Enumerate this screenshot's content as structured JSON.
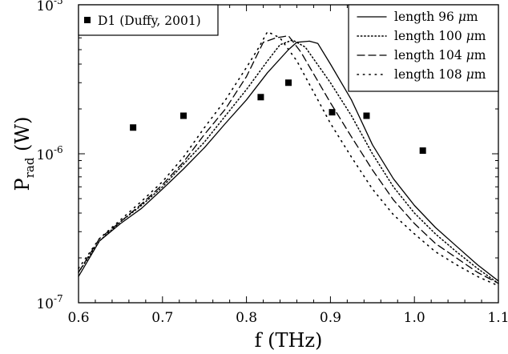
{
  "chart_data": {
    "type": "line",
    "title": "",
    "xlabel": "f (THz)",
    "ylabel": {
      "main": "P",
      "subscript": "rad",
      "unit": " (W)"
    },
    "xscale": "linear",
    "yscale": "log",
    "xlim": [
      0.6,
      1.1
    ],
    "ylim": [
      1e-07,
      1e-05
    ],
    "x_ticks": [
      {
        "value": 0.6,
        "label": "0.6"
      },
      {
        "value": 0.7,
        "label": "0.7"
      },
      {
        "value": 0.8,
        "label": "0.8"
      },
      {
        "value": 0.9,
        "label": "0.9"
      },
      {
        "value": 1.0,
        "label": "1.0"
      },
      {
        "value": 1.1,
        "label": "1.1"
      }
    ],
    "y_ticks": [
      {
        "value": 1e-07,
        "base": "10",
        "exp": "-7"
      },
      {
        "value": 1e-06,
        "base": "10",
        "exp": "-6"
      },
      {
        "value": 1e-05,
        "base": "10",
        "exp": "-5"
      }
    ],
    "grid": false,
    "legend_position": "top-right",
    "scatter_legend_position": "top-left",
    "series": [
      {
        "name": "length 96 μm",
        "legend_parts": [
          "length 96 ",
          "μ",
          "m"
        ],
        "style": "solid",
        "x": [
          0.6,
          0.625,
          0.65,
          0.675,
          0.7,
          0.725,
          0.75,
          0.775,
          0.8,
          0.825,
          0.85,
          0.86,
          0.875,
          0.885,
          0.9,
          0.925,
          0.95,
          0.975,
          1.0,
          1.025,
          1.05,
          1.075,
          1.1
        ],
        "y": [
          1.5e-07,
          2.6e-07,
          3.4e-07,
          4.3e-07,
          5.8e-07,
          7.9e-07,
          1.1e-06,
          1.6e-06,
          2.3e-06,
          3.5e-06,
          5e-06,
          5.6e-06,
          5.7e-06,
          5.5e-06,
          4e-06,
          2.3e-06,
          1.15e-06,
          6.8e-07,
          4.5e-07,
          3.2e-07,
          2.4e-07,
          1.8e-07,
          1.4e-07
        ]
      },
      {
        "name": "length 100 μm",
        "legend_parts": [
          "length 100 ",
          "μ",
          "m"
        ],
        "style": "dotted",
        "x": [
          0.6,
          0.625,
          0.65,
          0.675,
          0.7,
          0.725,
          0.75,
          0.775,
          0.8,
          0.825,
          0.84,
          0.855,
          0.87,
          0.9,
          0.925,
          0.95,
          0.975,
          1.0,
          1.025,
          1.05,
          1.075,
          1.1
        ],
        "y": [
          1.6e-07,
          2.6e-07,
          3.5e-07,
          4.5e-07,
          6e-07,
          8.5e-07,
          1.2e-06,
          1.8e-06,
          2.7e-06,
          4.2e-06,
          5.4e-06,
          5.8e-06,
          5.2e-06,
          3e-06,
          1.8e-06,
          1e-06,
          6e-07,
          4e-07,
          2.9e-07,
          2.2e-07,
          1.7e-07,
          1.35e-07
        ]
      },
      {
        "name": "length 104 μm",
        "legend_parts": [
          "length 104 ",
          "μ",
          "m"
        ],
        "style": "dashed",
        "x": [
          0.6,
          0.625,
          0.65,
          0.675,
          0.7,
          0.725,
          0.75,
          0.775,
          0.8,
          0.82,
          0.835,
          0.85,
          0.865,
          0.9,
          0.925,
          0.95,
          0.975,
          1.0,
          1.025,
          1.05,
          1.075,
          1.1
        ],
        "y": [
          1.6e-07,
          2.7e-07,
          3.5e-07,
          4.6e-07,
          6.2e-07,
          8.8e-07,
          1.35e-06,
          2e-06,
          3.3e-06,
          5.6e-06,
          6e-06,
          6.2e-06,
          4.8e-06,
          2.2e-06,
          1.3e-06,
          7.8e-07,
          4.9e-07,
          3.4e-07,
          2.5e-07,
          2e-07,
          1.6e-07,
          1.35e-07
        ]
      },
      {
        "name": "length 108 μm",
        "legend_parts": [
          "length 108 ",
          "μ",
          "m"
        ],
        "style": "sparse-dotted",
        "x": [
          0.6,
          0.625,
          0.65,
          0.675,
          0.7,
          0.725,
          0.75,
          0.775,
          0.8,
          0.815,
          0.825,
          0.84,
          0.86,
          0.9,
          0.925,
          0.95,
          0.975,
          1.0,
          1.025,
          1.05,
          1.075,
          1.1
        ],
        "y": [
          1.7e-07,
          2.7e-07,
          3.6e-07,
          4.8e-07,
          6.5e-07,
          9.5e-07,
          1.5e-06,
          2.3e-06,
          3.8e-06,
          5.2e-06,
          6.6e-06,
          6e-06,
          4.2e-06,
          1.6e-06,
          9.5e-07,
          5.8e-07,
          3.9e-07,
          2.9e-07,
          2.2e-07,
          1.8e-07,
          1.5e-07,
          1.3e-07
        ]
      }
    ],
    "scatter": {
      "name": "D1 (Duffy, 2001)",
      "marker": "square",
      "points": [
        {
          "x": 0.665,
          "y": 1.5e-06
        },
        {
          "x": 0.725,
          "y": 1.8e-06
        },
        {
          "x": 0.817,
          "y": 2.4e-06
        },
        {
          "x": 0.85,
          "y": 3e-06
        },
        {
          "x": 0.902,
          "y": 1.9e-06
        },
        {
          "x": 0.943,
          "y": 1.8e-06
        },
        {
          "x": 1.01,
          "y": 1.05e-06
        }
      ]
    }
  }
}
